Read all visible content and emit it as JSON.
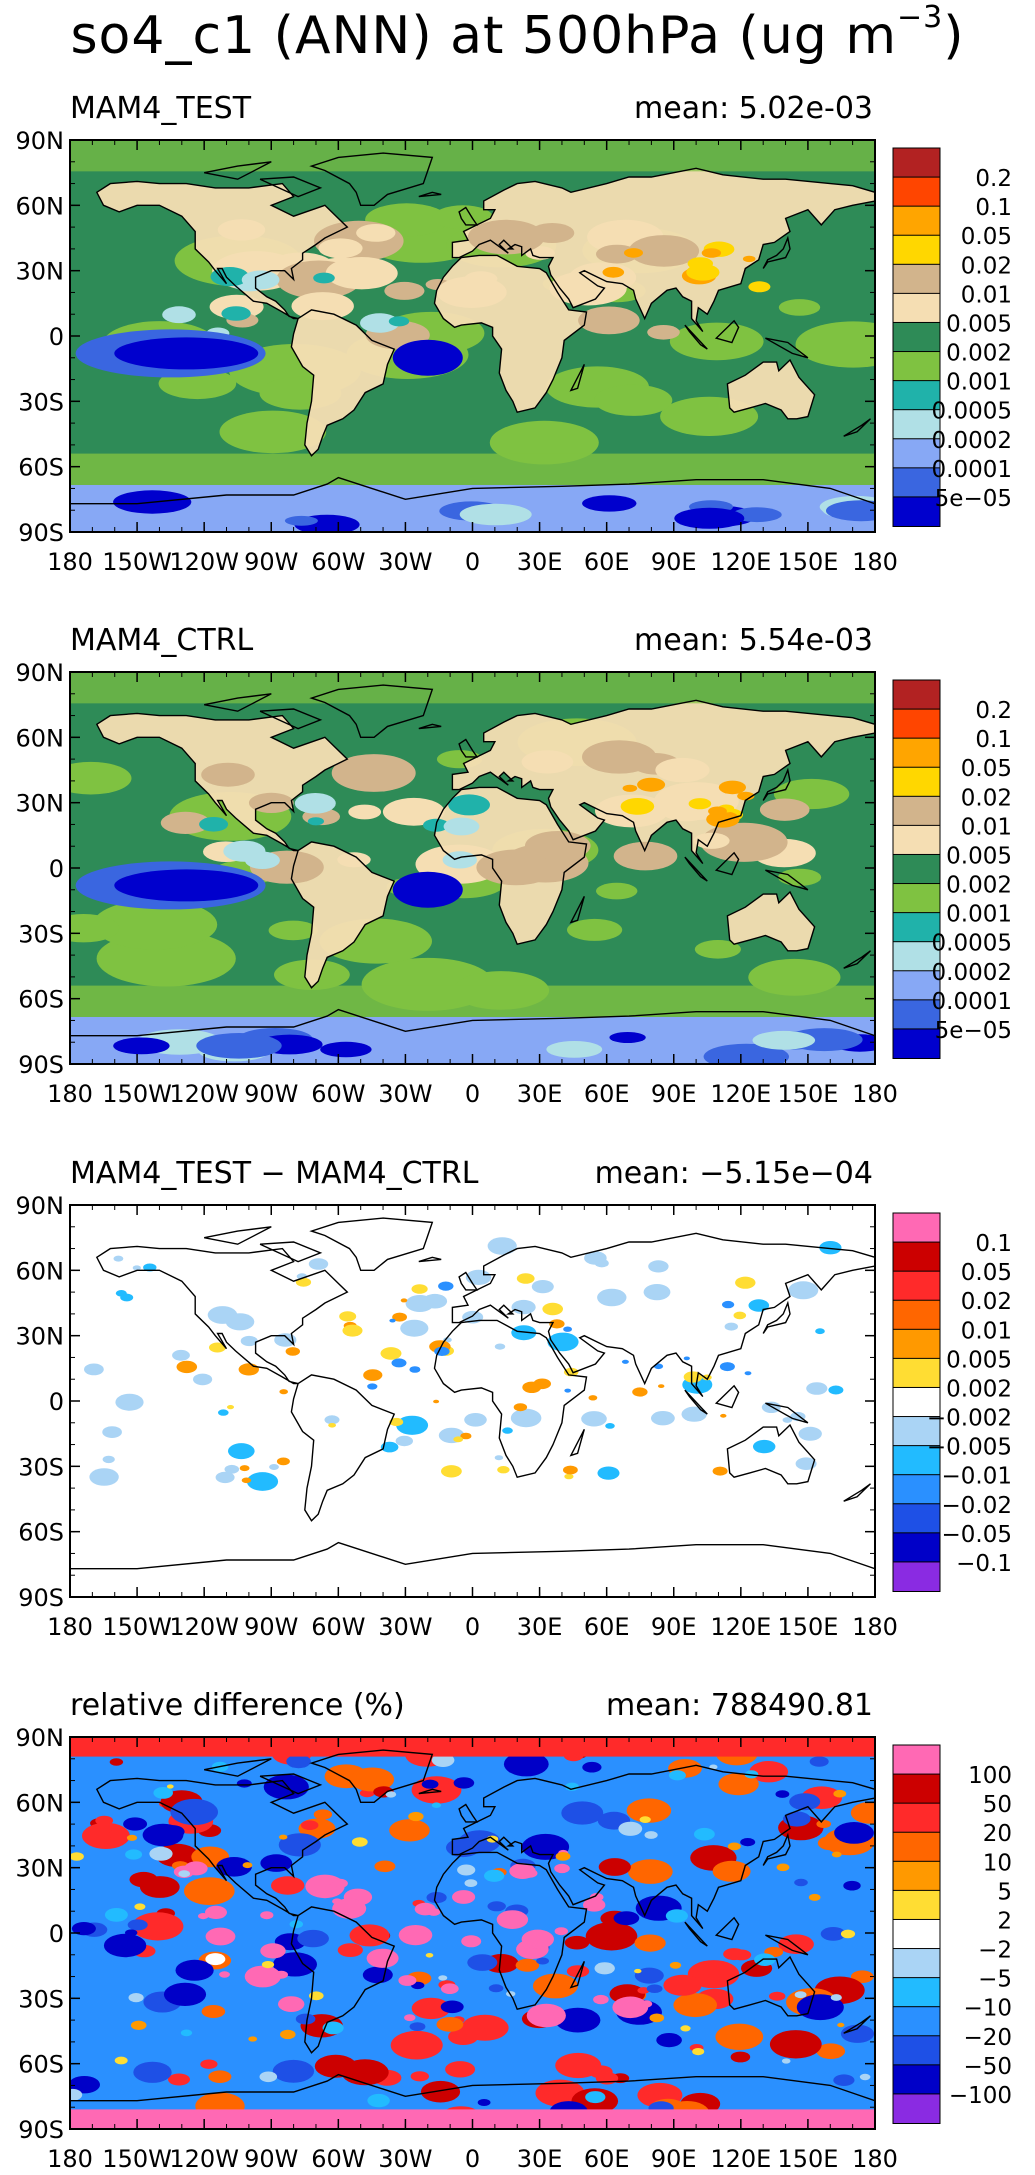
{
  "title": {
    "prefix": "so4_c1 (ANN) at 500hPa (ug m",
    "exponent": "−3",
    "suffix": ")"
  },
  "colors": {
    "land_ocean_palette": {
      "0.2": "#b22222",
      "0.1": "#ff4500",
      "0.05": "#ffa500",
      "0.02": "#ffd700",
      "0.01": "#d2b48c",
      "0.005": "#f5deb3",
      "0.002": "#2e8b57",
      "0.001": "#7fc241",
      "0.0005": "#20b2aa",
      "0.0002": "#b0e0e6",
      "0.0001": "#87a8f5",
      "5e-05": "#3a66e0",
      "lowest": "#0000cd"
    },
    "diff_palette": {
      "top": "#ff69b4",
      "0.1": "#cc0000",
      "0.05": "#ff2a2a",
      "0.02": "#ff6600",
      "0.01": "#ff9900",
      "0.005": "#ffdd33",
      "0.002": "#ffffff",
      "-0.002": "#aad4f5",
      "-0.005": "#22bbff",
      "-0.01": "#2a90ff",
      "-0.02": "#1e50e6",
      "-0.05": "#0000c8",
      "bottom": "#8a2be2"
    }
  },
  "panels": [
    {
      "name": "MAM4_TEST",
      "mean_label": "mean: 5.02e-03",
      "legend": {
        "labels": [
          "0.2",
          "0.1",
          "0.05",
          "0.02",
          "0.01",
          "0.005",
          "0.002",
          "0.001",
          "0.0005",
          "0.0002",
          "0.0001",
          "5e−05"
        ],
        "colors": [
          "#b22222",
          "#ff4500",
          "#ffa500",
          "#ffd700",
          "#d2b48c",
          "#f5deb3",
          "#2e8b57",
          "#7fc241",
          "#20b2aa",
          "#b0e0e6",
          "#87a8f5",
          "#3a66e0",
          "#0000cd"
        ]
      },
      "field_style": "concentration"
    },
    {
      "name": "MAM4_CTRL",
      "mean_label": "mean: 5.54e-03",
      "legend": {
        "labels": [
          "0.2",
          "0.1",
          "0.05",
          "0.02",
          "0.01",
          "0.005",
          "0.002",
          "0.001",
          "0.0005",
          "0.0002",
          "0.0001",
          "5e−05"
        ],
        "colors": [
          "#b22222",
          "#ff4500",
          "#ffa500",
          "#ffd700",
          "#d2b48c",
          "#f5deb3",
          "#2e8b57",
          "#7fc241",
          "#20b2aa",
          "#b0e0e6",
          "#87a8f5",
          "#3a66e0",
          "#0000cd"
        ]
      },
      "field_style": "concentration"
    },
    {
      "name": "MAM4_TEST − MAM4_CTRL",
      "mean_label": "mean: −5.15e−04",
      "legend": {
        "labels": [
          "0.1",
          "0.05",
          "0.02",
          "0.01",
          "0.005",
          "0.002",
          "−0.002",
          "−0.005",
          "−0.01",
          "−0.02",
          "−0.05",
          "−0.1"
        ],
        "colors": [
          "#ff69b4",
          "#cc0000",
          "#ff2a2a",
          "#ff6600",
          "#ff9900",
          "#ffdd33",
          "#ffffff",
          "#aad4f5",
          "#22bbff",
          "#2a90ff",
          "#1e50e6",
          "#0000c8",
          "#8a2be2"
        ]
      },
      "field_style": "difference"
    },
    {
      "name": "relative difference (%)",
      "mean_label": "mean: 788490.81",
      "legend": {
        "labels": [
          "100",
          "50",
          "20",
          "10",
          "5",
          "2",
          "−2",
          "−5",
          "−10",
          "−20",
          "−50",
          "−100"
        ],
        "colors": [
          "#ff69b4",
          "#cc0000",
          "#ff2a2a",
          "#ff6600",
          "#ff9900",
          "#ffdd33",
          "#ffffff",
          "#aad4f5",
          "#22bbff",
          "#2a90ff",
          "#1e50e6",
          "#0000c8",
          "#8a2be2"
        ]
      },
      "field_style": "relative"
    }
  ],
  "axes": {
    "lat_labels": [
      "90N",
      "60N",
      "30N",
      "0",
      "30S",
      "60S",
      "90S"
    ],
    "lon_labels": [
      "180",
      "150W",
      "120W",
      "90W",
      "60W",
      "30W",
      "0",
      "30E",
      "60E",
      "90E",
      "120E",
      "150E",
      "180"
    ]
  }
}
